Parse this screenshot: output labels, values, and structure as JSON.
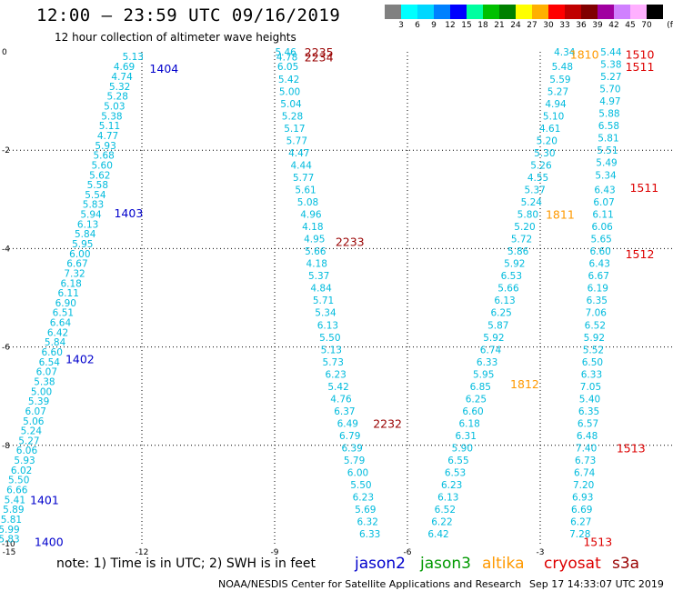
{
  "title": "12:00 – 23:59 UTC 09/16/2019",
  "subtitle": "12 hour collection of altimeter wave heights",
  "colorbar": {
    "labels": [
      "3",
      "6",
      "9",
      "12",
      "15",
      "18",
      "21",
      "24",
      "27",
      "30",
      "33",
      "36",
      "39",
      "42",
      "45",
      "70"
    ],
    "unit": "(ft)",
    "colors": [
      "#808080",
      "#00ffff",
      "#00d7ff",
      "#0080ff",
      "#0000ff",
      "#00ffa0",
      "#00c000",
      "#008000",
      "#ffff00",
      "#ffb000",
      "#ff0000",
      "#c00000",
      "#800000",
      "#a000a0",
      "#d080ff",
      "#ffb0ff",
      "#000000"
    ]
  },
  "footer": {
    "note": "note: 1) Time is in UTC; 2) SWH is in feet",
    "credit": "NOAA/NESDIS Center for Satellite Applications and Research",
    "timestamp": "Sep 17 14:33:07 UTC 2019"
  },
  "satellites": [
    {
      "name": "jason2",
      "color": "#0000cc"
    },
    {
      "name": "jason3",
      "color": "#009900"
    },
    {
      "name": "altika",
      "color": "#ff9900"
    },
    {
      "name": "cryosat",
      "color": "#dd0000"
    },
    {
      "name": "s3a",
      "color": "#990000"
    }
  ],
  "chart_data": {
    "type": "scatter",
    "xlabel": "",
    "ylabel": "",
    "xlim": [
      -15,
      0
    ],
    "ylim": [
      -10,
      0
    ],
    "xticks": [
      -15,
      -12,
      -9,
      -6,
      -3
    ],
    "yticks": [
      0,
      -2,
      -4,
      -6,
      -8,
      -10
    ],
    "xtick_labels": [
      "-15",
      "-12",
      "-9",
      "-6",
      "-3"
    ],
    "ytick_labels": [
      "0",
      "-2",
      "-4",
      "-6",
      "-8",
      "-10"
    ],
    "grid": "dotted",
    "value_color": "#00bbdd",
    "tracks": [
      {
        "series": "jason2",
        "points": [
          [
            -12.2,
            -0.09,
            "5.13"
          ],
          [
            -12.4,
            -0.3,
            "4.69"
          ],
          [
            -12.45,
            -0.5,
            "4.74"
          ],
          [
            -12.5,
            -0.7,
            "5.32"
          ],
          [
            -12.55,
            -0.9,
            "5.28"
          ],
          [
            -12.62,
            -1.1,
            "5.03"
          ],
          [
            -12.68,
            -1.3,
            "5.38"
          ],
          [
            -12.73,
            -1.5,
            "5.11"
          ],
          [
            -12.77,
            -1.7,
            "4.77"
          ],
          [
            -12.82,
            -1.9,
            "5.93"
          ],
          [
            -12.86,
            -2.1,
            "5.68"
          ],
          [
            -12.9,
            -2.3,
            "5.60"
          ],
          [
            -12.95,
            -2.5,
            "5.62"
          ],
          [
            -13.0,
            -2.7,
            "5.58"
          ],
          [
            -13.05,
            -2.9,
            "5.54"
          ],
          [
            -13.1,
            -3.1,
            "5.83"
          ],
          [
            -13.15,
            -3.3,
            "5.94"
          ],
          [
            -13.22,
            -3.5,
            "6.13"
          ],
          [
            -13.28,
            -3.7,
            "5.84"
          ],
          [
            -13.34,
            -3.9,
            "5.95"
          ],
          [
            -13.4,
            -4.1,
            "6.00"
          ],
          [
            -13.46,
            -4.3,
            "6.67"
          ],
          [
            -13.52,
            -4.5,
            "7.32"
          ],
          [
            -13.6,
            -4.7,
            "6.18"
          ],
          [
            -13.66,
            -4.9,
            "6.11"
          ],
          [
            -13.72,
            -5.1,
            "6.90"
          ],
          [
            -13.78,
            -5.3,
            "6.51"
          ],
          [
            -13.84,
            -5.5,
            "6.64"
          ],
          [
            -13.9,
            -5.7,
            "6.42"
          ],
          [
            -13.96,
            -5.9,
            "5.84"
          ],
          [
            -14.03,
            -6.1,
            "6.60"
          ],
          [
            -14.09,
            -6.3,
            "6.54"
          ],
          [
            -14.15,
            -6.5,
            "6.07"
          ],
          [
            -14.2,
            -6.7,
            "5.38"
          ],
          [
            -14.27,
            -6.9,
            "5.00"
          ],
          [
            -14.33,
            -7.1,
            "5.39"
          ],
          [
            -14.4,
            -7.3,
            "6.07"
          ],
          [
            -14.45,
            -7.5,
            "5.06"
          ],
          [
            -14.5,
            -7.7,
            "5.24"
          ],
          [
            -14.55,
            -7.9,
            "5.27"
          ],
          [
            -14.6,
            -8.1,
            "6.06"
          ],
          [
            -14.65,
            -8.3,
            "5.93"
          ],
          [
            -14.72,
            -8.5,
            "6.02"
          ],
          [
            -14.78,
            -8.7,
            "5.50"
          ],
          [
            -14.82,
            -8.9,
            "6.66"
          ],
          [
            -14.87,
            -9.1,
            "5.41"
          ],
          [
            -14.9,
            -9.3,
            "5.89"
          ],
          [
            -14.95,
            -9.5,
            "5.81"
          ],
          [
            -15.0,
            -9.7,
            "5.99"
          ],
          [
            -15.0,
            -9.9,
            "5.83"
          ]
        ]
      },
      {
        "series": "jason2",
        "points": [
          [
            -8.75,
            -0.0,
            "5.46"
          ],
          [
            -8.72,
            -0.1,
            "4.78"
          ],
          [
            -8.7,
            -0.3,
            "6.05"
          ],
          [
            -8.68,
            -0.55,
            "5.42"
          ],
          [
            -8.66,
            -0.8,
            "5.00"
          ],
          [
            -8.63,
            -1.05,
            "5.04"
          ],
          [
            -8.6,
            -1.3,
            "5.28"
          ],
          [
            -8.55,
            -1.55,
            "5.17"
          ],
          [
            -8.5,
            -1.8,
            "5.77"
          ],
          [
            -8.45,
            -2.05,
            "4.47"
          ],
          [
            -8.4,
            -2.3,
            "4.44"
          ],
          [
            -8.35,
            -2.55,
            "5.77"
          ],
          [
            -8.3,
            -2.8,
            "5.61"
          ],
          [
            -8.25,
            -3.05,
            "5.08"
          ],
          [
            -8.18,
            -3.3,
            "4.96"
          ],
          [
            -8.14,
            -3.55,
            "4.18"
          ],
          [
            -8.1,
            -3.8,
            "4.95"
          ],
          [
            -8.08,
            -4.05,
            "5.66"
          ],
          [
            -8.05,
            -4.3,
            "4.18"
          ],
          [
            -8.0,
            -4.55,
            "5.37"
          ],
          [
            -7.95,
            -4.8,
            "4.84"
          ],
          [
            -7.9,
            -5.05,
            "5.71"
          ],
          [
            -7.85,
            -5.3,
            "5.34"
          ],
          [
            -7.8,
            -5.55,
            "6.13"
          ],
          [
            -7.75,
            -5.8,
            "5.50"
          ],
          [
            -7.72,
            -6.05,
            "5.13"
          ],
          [
            -7.68,
            -6.3,
            "5.73"
          ],
          [
            -7.62,
            -6.55,
            "6.23"
          ],
          [
            -7.56,
            -6.8,
            "5.42"
          ],
          [
            -7.5,
            -7.05,
            "4.76"
          ],
          [
            -7.42,
            -7.3,
            "6.37"
          ],
          [
            -7.35,
            -7.55,
            "6.49"
          ],
          [
            -7.3,
            -7.8,
            "6.79"
          ],
          [
            -7.25,
            -8.05,
            "6.39"
          ],
          [
            -7.2,
            -8.3,
            "5.79"
          ],
          [
            -7.12,
            -8.55,
            "6.00"
          ],
          [
            -7.05,
            -8.8,
            "5.50"
          ],
          [
            -7.0,
            -9.05,
            "6.23"
          ],
          [
            -6.95,
            -9.3,
            "5.69"
          ],
          [
            -6.9,
            -9.55,
            "6.32"
          ],
          [
            -6.85,
            -9.8,
            "6.33"
          ],
          [
            -6.8,
            -10.05,
            "5.70"
          ],
          [
            -6.75,
            -10.3,
            "5.62"
          ]
        ]
      },
      {
        "series": "jason3",
        "points": [
          [
            -2.45,
            -0.0,
            "4.34"
          ],
          [
            -2.5,
            -0.3,
            "5.48"
          ],
          [
            -2.55,
            -0.55,
            "5.59"
          ],
          [
            -2.6,
            -0.8,
            "5.27"
          ],
          [
            -2.65,
            -1.05,
            "4.94"
          ],
          [
            -2.7,
            -1.3,
            "5.10"
          ],
          [
            -2.78,
            -1.55,
            "4.61"
          ],
          [
            -2.85,
            -1.8,
            "5.20"
          ],
          [
            -2.9,
            -2.05,
            "5.30"
          ],
          [
            -2.98,
            -2.3,
            "5.26"
          ],
          [
            -3.05,
            -2.55,
            "4.55"
          ],
          [
            -3.12,
            -2.8,
            "5.37"
          ],
          [
            -3.2,
            -3.05,
            "5.24"
          ],
          [
            -3.28,
            -3.3,
            "5.80"
          ],
          [
            -3.35,
            -3.55,
            "5.20"
          ],
          [
            -3.42,
            -3.8,
            "5.72"
          ],
          [
            -3.5,
            -4.05,
            "5.86"
          ],
          [
            -3.58,
            -4.3,
            "5.92"
          ],
          [
            -3.65,
            -4.55,
            "6.53"
          ],
          [
            -3.72,
            -4.8,
            "5.66"
          ],
          [
            -3.8,
            -5.05,
            "6.13"
          ],
          [
            -3.88,
            -5.3,
            "6.25"
          ],
          [
            -3.95,
            -5.55,
            "5.87"
          ],
          [
            -4.05,
            -5.8,
            "5.92"
          ],
          [
            -4.12,
            -6.05,
            "6.74"
          ],
          [
            -4.2,
            -6.3,
            "6.33"
          ],
          [
            -4.28,
            -6.55,
            "5.95"
          ],
          [
            -4.35,
            -6.8,
            "6.85"
          ],
          [
            -4.45,
            -7.05,
            "6.25"
          ],
          [
            -4.52,
            -7.3,
            "6.60"
          ],
          [
            -4.6,
            -7.55,
            "6.18"
          ],
          [
            -4.68,
            -7.8,
            "6.31"
          ],
          [
            -4.76,
            -8.05,
            "5.90"
          ],
          [
            -4.85,
            -8.3,
            "6.55"
          ],
          [
            -4.92,
            -8.55,
            "6.53"
          ],
          [
            -5.0,
            -8.8,
            "6.23"
          ],
          [
            -5.08,
            -9.05,
            "6.13"
          ],
          [
            -5.15,
            -9.3,
            "6.52"
          ],
          [
            -5.22,
            -9.55,
            "6.22"
          ],
          [
            -5.3,
            -9.8,
            "6.42"
          ],
          [
            -5.38,
            -10.05,
            "6.29"
          ]
        ]
      },
      {
        "series": "cryosat",
        "points": [
          [
            -1.4,
            -0.0,
            "5.44"
          ],
          [
            -1.4,
            -0.25,
            "5.38"
          ],
          [
            -1.4,
            -0.5,
            "5.27"
          ],
          [
            -1.42,
            -0.75,
            "5.70"
          ],
          [
            -1.42,
            -1.0,
            "4.97"
          ],
          [
            -1.44,
            -1.25,
            "5.88"
          ],
          [
            -1.45,
            -1.5,
            "6.58"
          ],
          [
            -1.46,
            -1.75,
            "5.81"
          ],
          [
            -1.48,
            -2.0,
            "5.51"
          ],
          [
            -1.5,
            -2.25,
            "5.49"
          ],
          [
            -1.52,
            -2.5,
            "5.34"
          ],
          [
            -1.54,
            -2.8,
            "6.43"
          ],
          [
            -1.56,
            -3.05,
            "6.07"
          ],
          [
            -1.58,
            -3.3,
            "6.11"
          ],
          [
            -1.6,
            -3.55,
            "6.06"
          ],
          [
            -1.62,
            -3.8,
            "5.65"
          ],
          [
            -1.64,
            -4.05,
            "6.60"
          ],
          [
            -1.66,
            -4.3,
            "6.43"
          ],
          [
            -1.68,
            -4.55,
            "6.67"
          ],
          [
            -1.7,
            -4.8,
            "6.19"
          ],
          [
            -1.72,
            -5.05,
            "6.35"
          ],
          [
            -1.74,
            -5.3,
            "7.06"
          ],
          [
            -1.76,
            -5.55,
            "6.52"
          ],
          [
            -1.78,
            -5.8,
            "5.92"
          ],
          [
            -1.8,
            -6.05,
            "5.52"
          ],
          [
            -1.82,
            -6.3,
            "6.50"
          ],
          [
            -1.84,
            -6.55,
            "6.33"
          ],
          [
            -1.86,
            -6.8,
            "7.05"
          ],
          [
            -1.88,
            -7.05,
            "5.40"
          ],
          [
            -1.9,
            -7.3,
            "6.35"
          ],
          [
            -1.92,
            -7.55,
            "6.57"
          ],
          [
            -1.94,
            -7.8,
            "6.48"
          ],
          [
            -1.96,
            -8.05,
            "7.40"
          ],
          [
            -1.98,
            -8.3,
            "6.73"
          ],
          [
            -2.0,
            -8.55,
            "6.74"
          ],
          [
            -2.02,
            -8.8,
            "7.20"
          ],
          [
            -2.04,
            -9.05,
            "6.93"
          ],
          [
            -2.06,
            -9.3,
            "6.69"
          ],
          [
            -2.08,
            -9.55,
            "6.27"
          ],
          [
            -2.1,
            -9.8,
            "7.28"
          ],
          [
            -2.12,
            -10.05,
            "7.08"
          ],
          [
            -2.14,
            -10.3,
            "6.70"
          ],
          [
            -2.16,
            -10.55,
            "7.24"
          ],
          [
            -2.18,
            -10.8,
            "7.36"
          ]
        ]
      }
    ],
    "pass_labels": [
      {
        "text": "1404",
        "x": -11.5,
        "y": -0.33,
        "series": "jason2"
      },
      {
        "text": "1403",
        "x": -12.3,
        "y": -3.27,
        "series": "jason2"
      },
      {
        "text": "1402",
        "x": -13.4,
        "y": -6.24,
        "series": "jason2"
      },
      {
        "text": "1401",
        "x": -14.2,
        "y": -9.1,
        "series": "jason2"
      },
      {
        "text": "1400",
        "x": -14.1,
        "y": -9.95,
        "series": "jason2"
      },
      {
        "text": "2235",
        "x": -8.0,
        "y": -0.0,
        "series": "s3a"
      },
      {
        "text": "2234",
        "x": -8.0,
        "y": -0.1,
        "series": "s3a"
      },
      {
        "text": "2233",
        "x": -7.3,
        "y": -3.85,
        "series": "s3a"
      },
      {
        "text": "2232",
        "x": -6.45,
        "y": -7.55,
        "series": "s3a"
      },
      {
        "text": "1810",
        "x": -2.0,
        "y": -0.05,
        "series": "altika"
      },
      {
        "text": "1811",
        "x": -2.55,
        "y": -3.3,
        "series": "altika"
      },
      {
        "text": "1812",
        "x": -3.35,
        "y": -6.75,
        "series": "altika"
      },
      {
        "text": "1510",
        "x": -0.75,
        "y": -0.05,
        "series": "cryosat"
      },
      {
        "text": "1511",
        "x": -0.75,
        "y": -0.3,
        "series": "cryosat"
      },
      {
        "text": "1511",
        "x": -0.65,
        "y": -2.75,
        "series": "cryosat"
      },
      {
        "text": "1512",
        "x": -0.75,
        "y": -4.1,
        "series": "cryosat"
      },
      {
        "text": "1513",
        "x": -0.95,
        "y": -8.05,
        "series": "cryosat"
      },
      {
        "text": "1513",
        "x": -1.7,
        "y": -9.95,
        "series": "cryosat"
      }
    ]
  }
}
